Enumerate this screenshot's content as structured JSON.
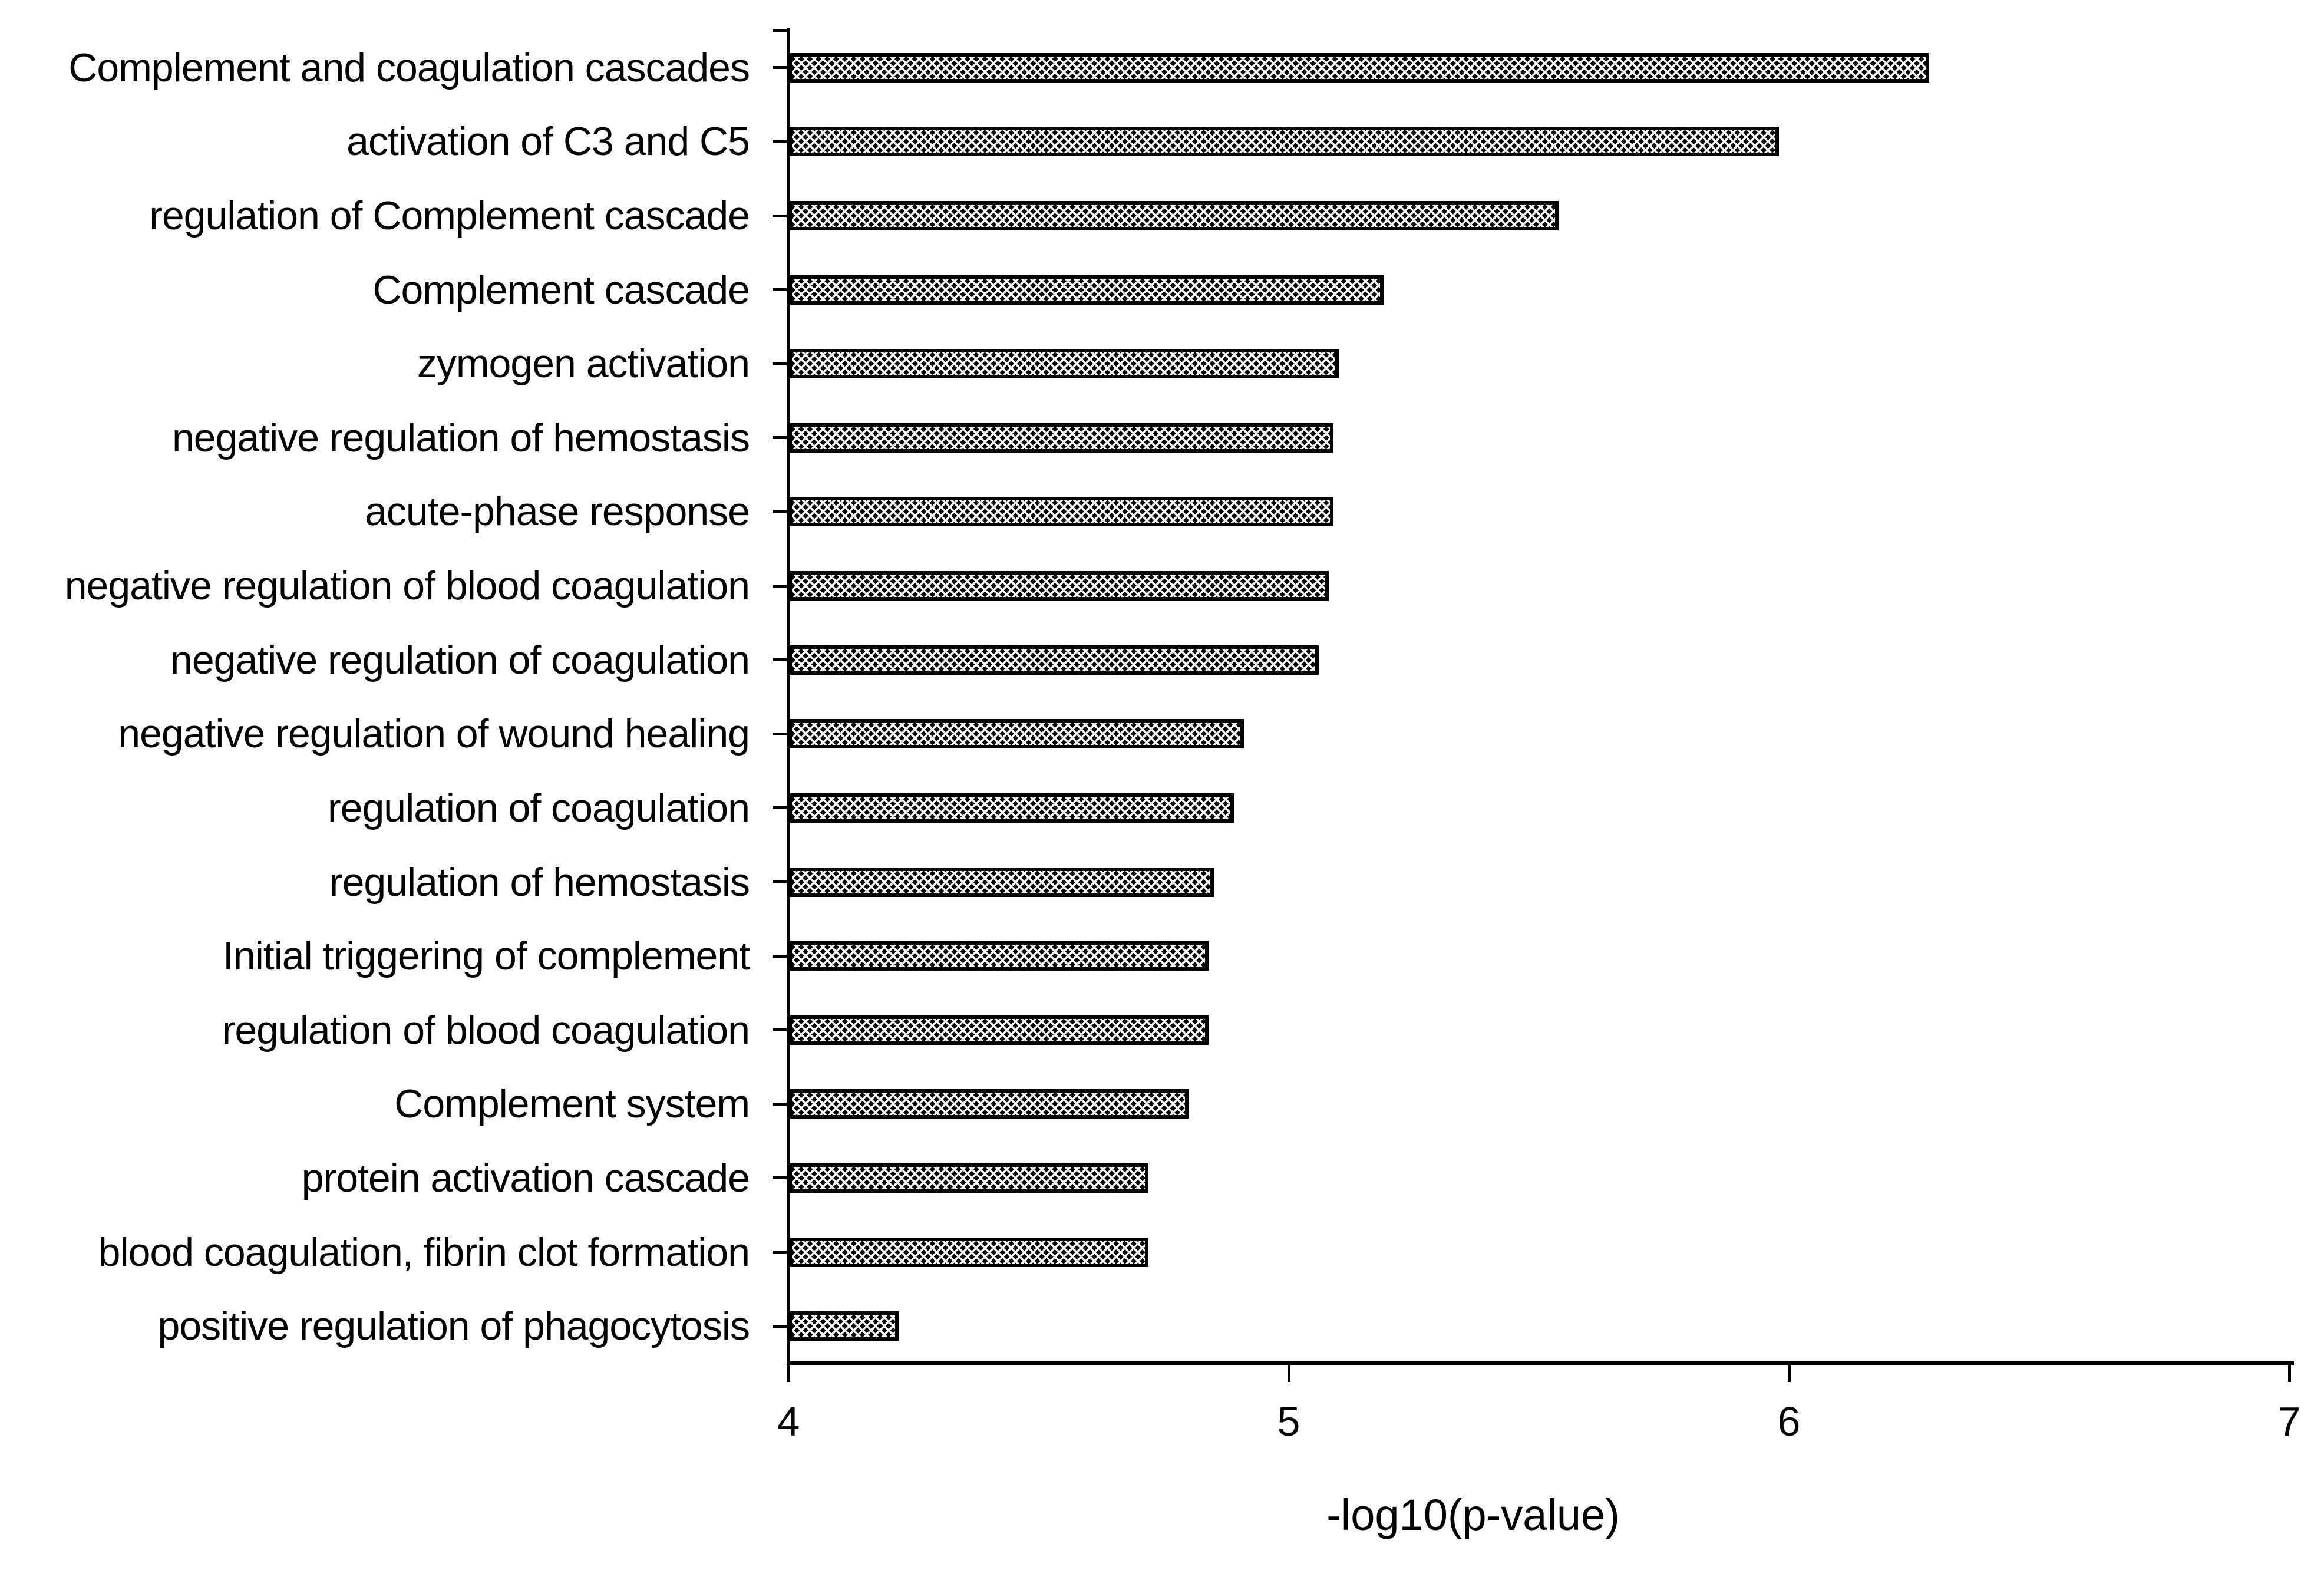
{
  "chart_data": {
    "type": "bar",
    "orientation": "horizontal",
    "title": "",
    "xlabel": "-log10(p-value)",
    "ylabel": "",
    "xlim": [
      4,
      7
    ],
    "x_ticks": [
      4,
      5,
      6,
      7
    ],
    "grid": false,
    "legend": "none",
    "bar_style": "black crosshatch pattern fill with black border",
    "colors": {
      "bar": "#000000",
      "pattern": "#ffffff",
      "axis": "#000000",
      "text": "#000000",
      "background": "#ffffff"
    },
    "categories": [
      "Complement and coagulation cascades",
      "activation of C3 and C5",
      "regulation of Complement cascade",
      "Complement cascade",
      "zymogen activation",
      "negative regulation of hemostasis",
      "acute-phase response",
      "negative regulation of blood coagulation",
      "negative regulation of coagulation",
      "negative regulation of wound healing",
      "regulation of coagulation",
      "regulation of hemostasis",
      "Initial triggering of complement",
      "regulation of blood coagulation",
      "Complement system",
      "protein activation cascade",
      "blood coagulation, fibrin clot formation",
      "positive regulation of phagocytosis"
    ],
    "values": [
      6.28,
      5.98,
      5.54,
      5.19,
      5.1,
      5.09,
      5.09,
      5.08,
      5.06,
      4.91,
      4.89,
      4.85,
      4.84,
      4.84,
      4.8,
      4.72,
      4.72,
      4.22
    ]
  }
}
